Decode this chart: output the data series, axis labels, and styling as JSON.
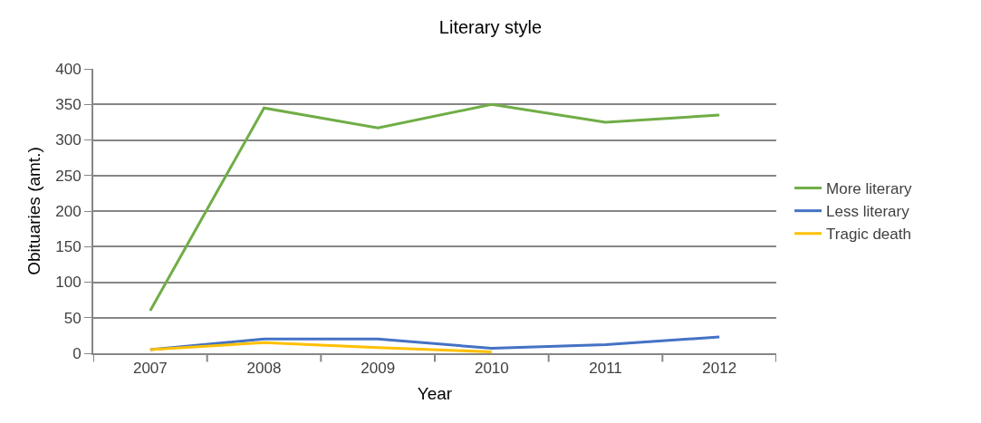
{
  "chart_data": {
    "type": "line",
    "title": "Literary style",
    "xlabel": "Year",
    "ylabel": "Obituaries (amt.)",
    "categories": [
      "2007",
      "2008",
      "2009",
      "2010",
      "2011",
      "2012"
    ],
    "series": [
      {
        "name": "More literary",
        "color": "#70ad47",
        "values": [
          60,
          345,
          317,
          350,
          325,
          335
        ]
      },
      {
        "name": "Less literary",
        "color": "#4472c4",
        "values": [
          5,
          20,
          20,
          7,
          12,
          23
        ]
      },
      {
        "name": "Tragic death",
        "color": "#ffc000",
        "values": [
          5,
          15,
          8,
          2,
          null,
          null
        ]
      }
    ],
    "ylim": [
      0,
      400
    ],
    "yticks": [
      0,
      50,
      100,
      150,
      200,
      250,
      300,
      350,
      400
    ],
    "grid": "y",
    "legend": "right",
    "marker": "none",
    "line_style": "solid"
  }
}
